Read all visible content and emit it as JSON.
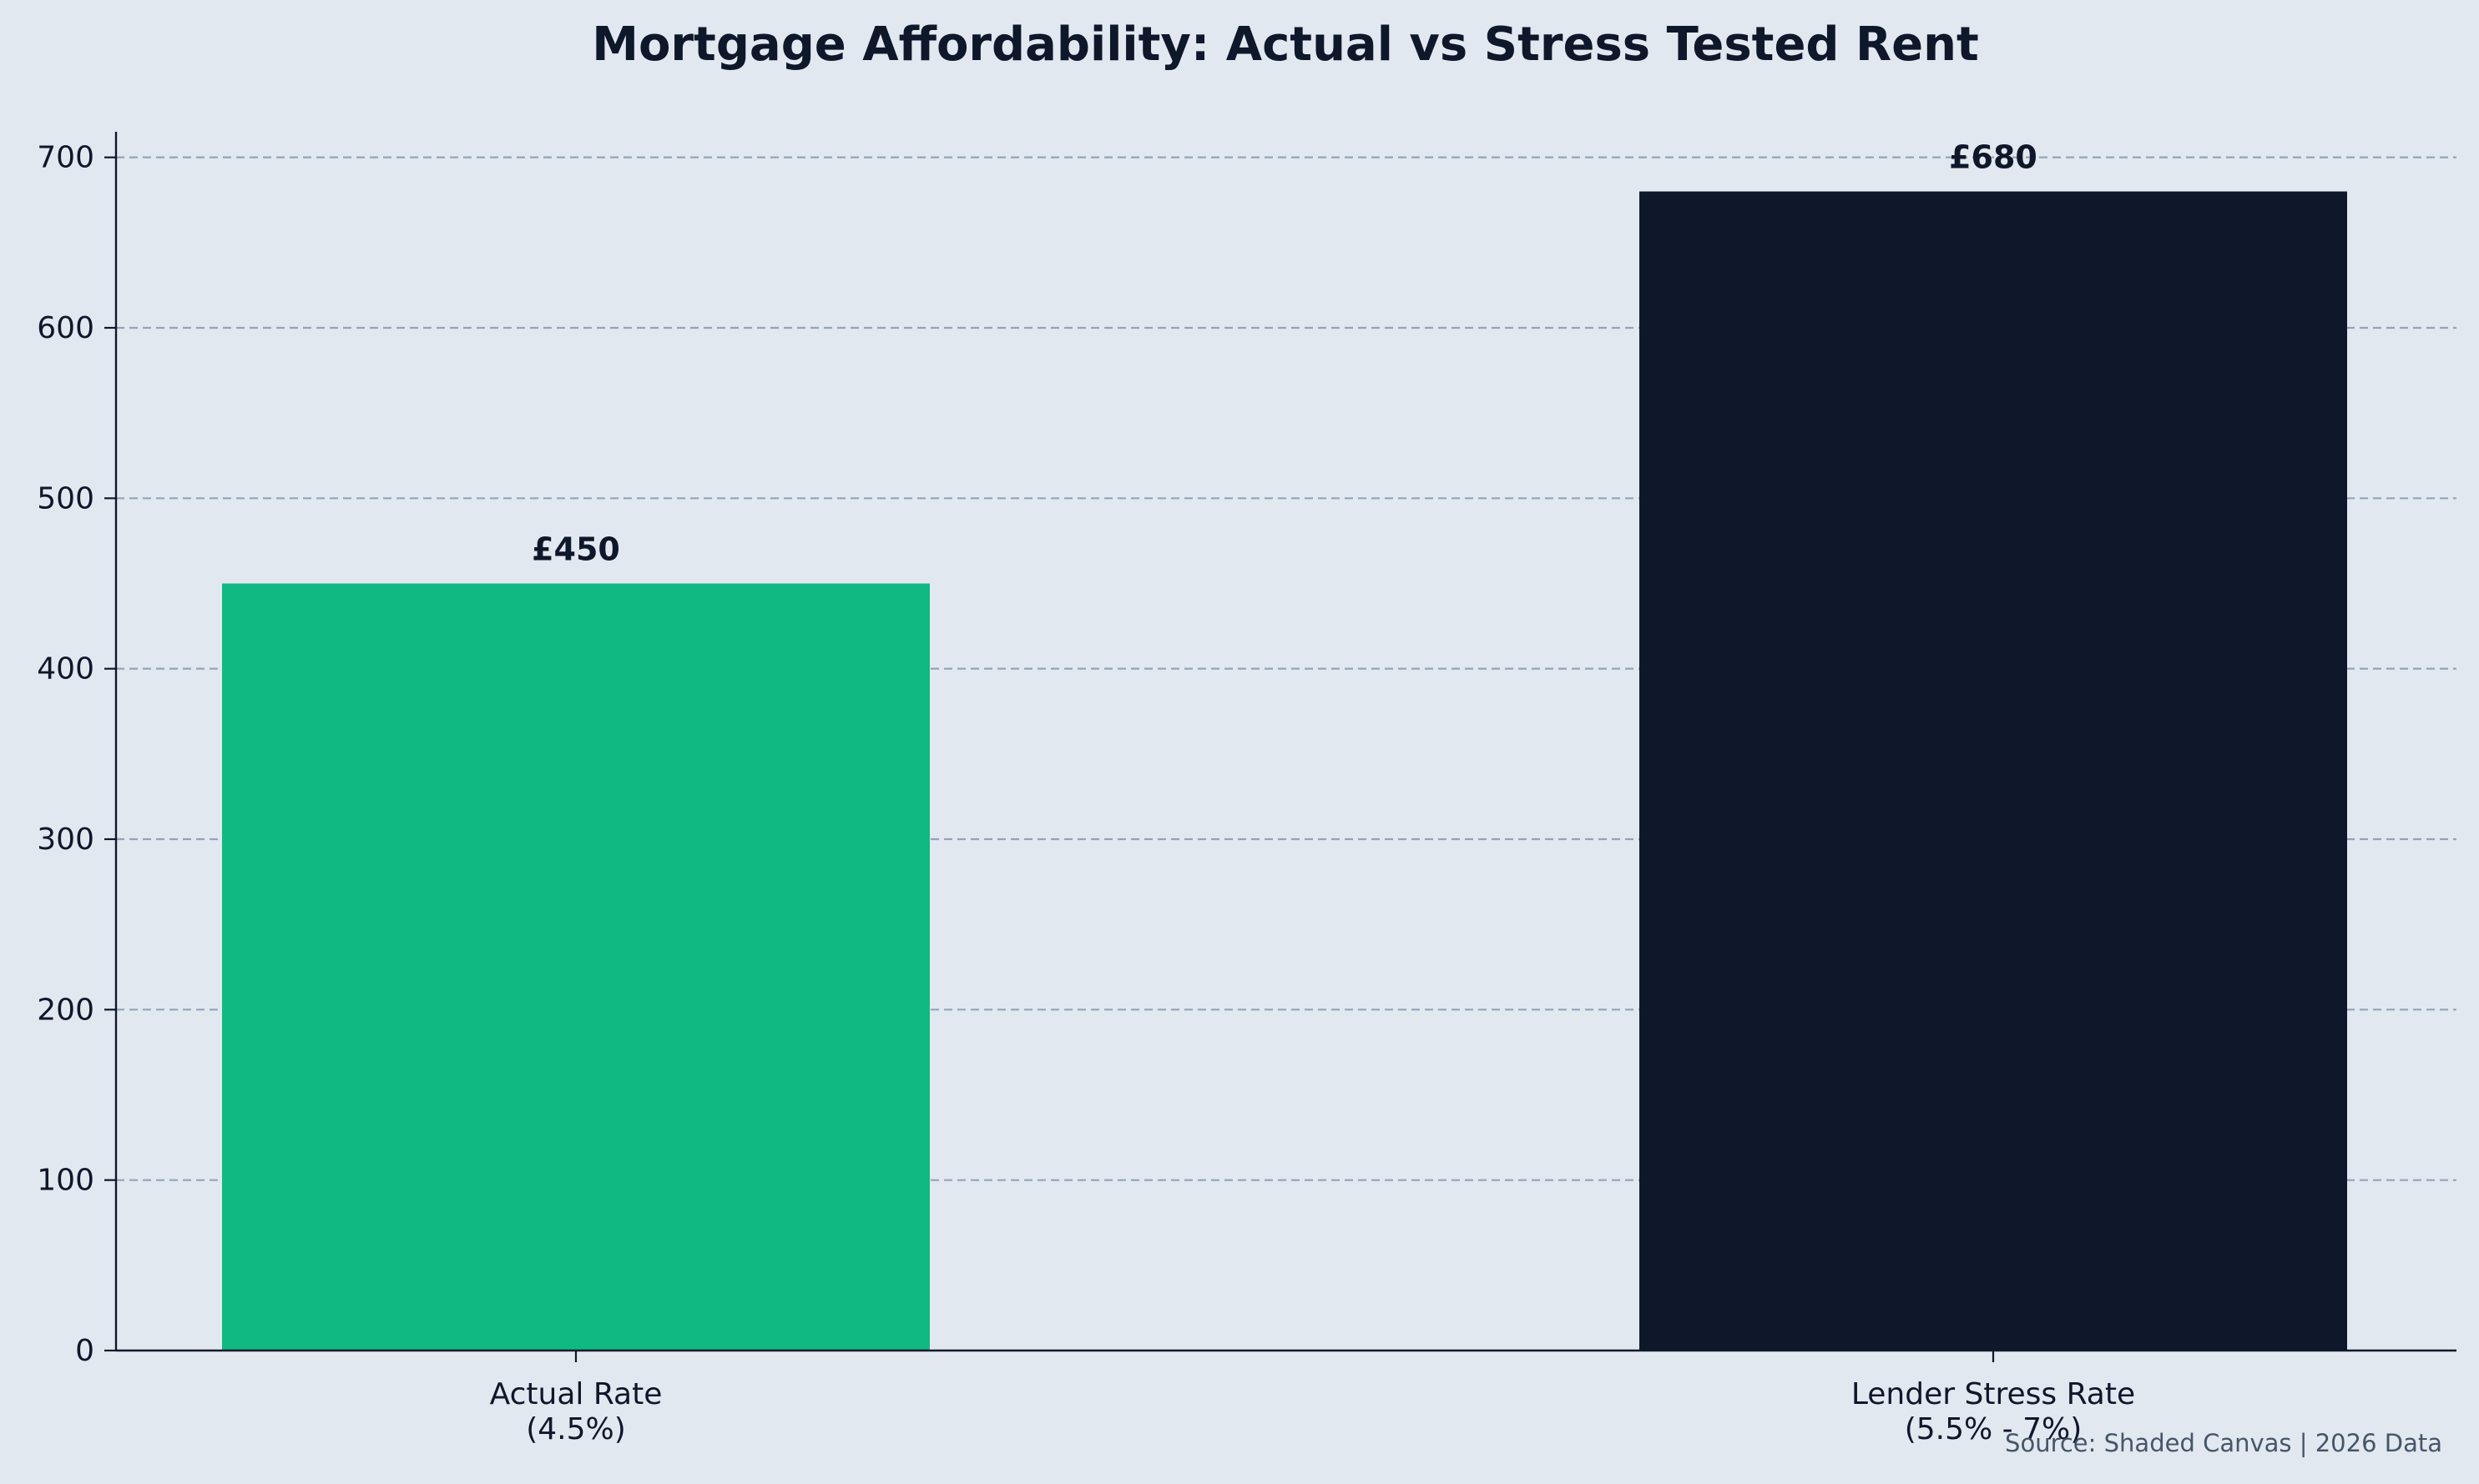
{
  "chart_data": {
    "type": "bar",
    "title": "Mortgage Affordability: Actual vs Stress Tested Rent",
    "xlabel": "",
    "ylabel": "",
    "categories": [
      [
        "Actual Rate",
        "(4.5%)"
      ],
      [
        "Lender Stress Rate",
        "(5.5% - 7%)"
      ]
    ],
    "values": [
      450,
      680
    ],
    "data_labels": [
      "£450",
      "£680"
    ],
    "bar_colors": [
      "#10b981",
      "#0f172a"
    ],
    "ylim": [
      0,
      715
    ],
    "yticks": [
      0,
      100,
      200,
      300,
      400,
      500,
      600,
      700
    ],
    "grid": "horizontal-dashed",
    "legend": "none",
    "source": "Source: Shaded Canvas | 2026 Data"
  },
  "colors": {
    "background": "#e2e8f0",
    "text": "#0f172a",
    "grid": "#94a3b8",
    "axis": "#0f172a",
    "source_text": "#475569"
  }
}
